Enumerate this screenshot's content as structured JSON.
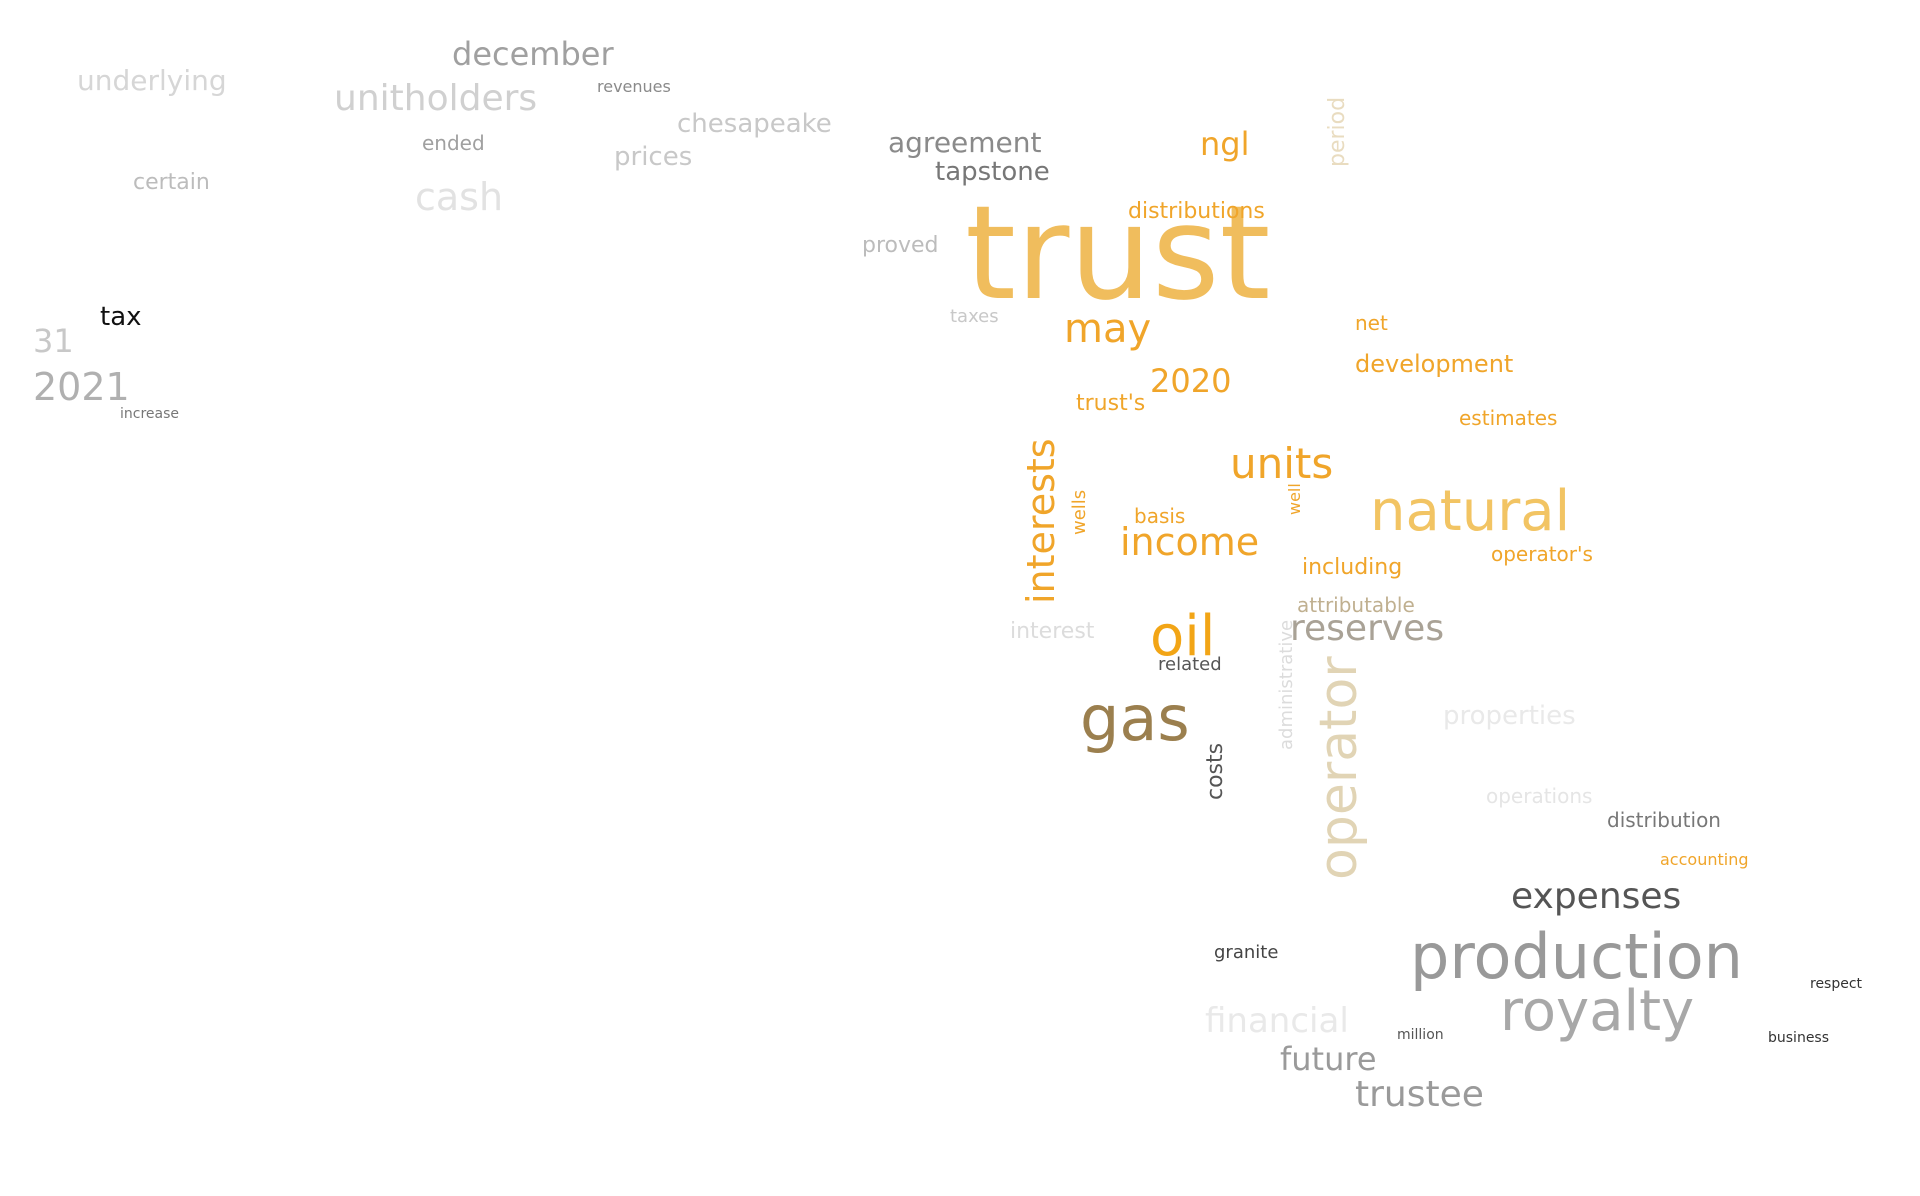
{
  "words": [
    {
      "text": "trust",
      "color": "#f0bd5d"
    },
    {
      "text": "production",
      "color": "#999999"
    },
    {
      "text": "natural",
      "color": "#f2c463"
    },
    {
      "text": "royalty",
      "color": "#a8a8a8"
    },
    {
      "text": "gas",
      "color": "#9b7f4e"
    },
    {
      "text": "units",
      "color": "#f0a52a"
    },
    {
      "text": "oil",
      "color": "#f2a516"
    },
    {
      "text": "interests",
      "color": "#f0a52a"
    },
    {
      "text": "operator",
      "color": "#e1d4b5"
    },
    {
      "text": "income",
      "color": "#f0a52a"
    },
    {
      "text": "reserves",
      "color": "#a9a296"
    },
    {
      "text": "expenses",
      "color": "#555555"
    },
    {
      "text": "trustee",
      "color": "#9a9a9a"
    },
    {
      "text": "financial",
      "color": "#e9e9e9"
    },
    {
      "text": "future",
      "color": "#9a9a9a"
    },
    {
      "text": "may",
      "color": "#f0a52a"
    },
    {
      "text": "2020",
      "color": "#f0a52a"
    },
    {
      "text": "development",
      "color": "#f0a52a"
    },
    {
      "text": "distributions",
      "color": "#f0a52a"
    },
    {
      "text": "agreement",
      "color": "#8a8a8a"
    },
    {
      "text": "tapstone",
      "color": "#777777"
    },
    {
      "text": "unitholders",
      "color": "#d0d0d0"
    },
    {
      "text": "december",
      "color": "#a0a0a0"
    },
    {
      "text": "cash",
      "color": "#e2e2e2"
    },
    {
      "text": "underlying",
      "color": "#d6d6d6"
    },
    {
      "text": "prices",
      "color": "#c8c8c8"
    },
    {
      "text": "chesapeake",
      "color": "#c8c8c8"
    },
    {
      "text": "certain",
      "color": "#bcbcbc"
    },
    {
      "text": "2021",
      "color": "#b0b0b0"
    },
    {
      "text": "31",
      "color": "#c8c8c8"
    },
    {
      "text": "tax",
      "color": "#111111"
    },
    {
      "text": "ngl",
      "color": "#f0a52a"
    },
    {
      "text": "proved",
      "color": "#bcbcbc"
    },
    {
      "text": "period",
      "color": "#e9dcc0"
    },
    {
      "text": "administrative",
      "color": "#dcdcdc"
    },
    {
      "text": "properties",
      "color": "#e9e9e9"
    },
    {
      "text": "distribution",
      "color": "#777777"
    },
    {
      "text": "operations",
      "color": "#e5e5e5"
    },
    {
      "text": "including",
      "color": "#f0a52a"
    },
    {
      "text": "attributable",
      "color": "#c0b090"
    },
    {
      "text": "estimates",
      "color": "#f0a52a"
    },
    {
      "text": "operator's",
      "color": "#f0a52a"
    },
    {
      "text": "trust's",
      "color": "#f0a52a"
    },
    {
      "text": "basis",
      "color": "#f0a52a"
    },
    {
      "text": "costs",
      "color": "#555555"
    },
    {
      "text": "granite",
      "color": "#444444"
    },
    {
      "text": "wells",
      "color": "#f0a52a"
    },
    {
      "text": "interest",
      "color": "#dcdcdc"
    },
    {
      "text": "related",
      "color": "#555555"
    },
    {
      "text": "accounting",
      "color": "#f0a52a"
    },
    {
      "text": "well",
      "color": "#f0a52a"
    },
    {
      "text": "net",
      "color": "#f0a52a"
    },
    {
      "text": "ended",
      "color": "#a0a0a0"
    },
    {
      "text": "revenues",
      "color": "#8a8a8a"
    },
    {
      "text": "taxes",
      "color": "#c8c8c8"
    },
    {
      "text": "respect",
      "color": "#333333"
    },
    {
      "text": "business",
      "color": "#333333"
    },
    {
      "text": "million",
      "color": "#555555"
    },
    {
      "text": "increase",
      "color": "#777777"
    }
  ]
}
